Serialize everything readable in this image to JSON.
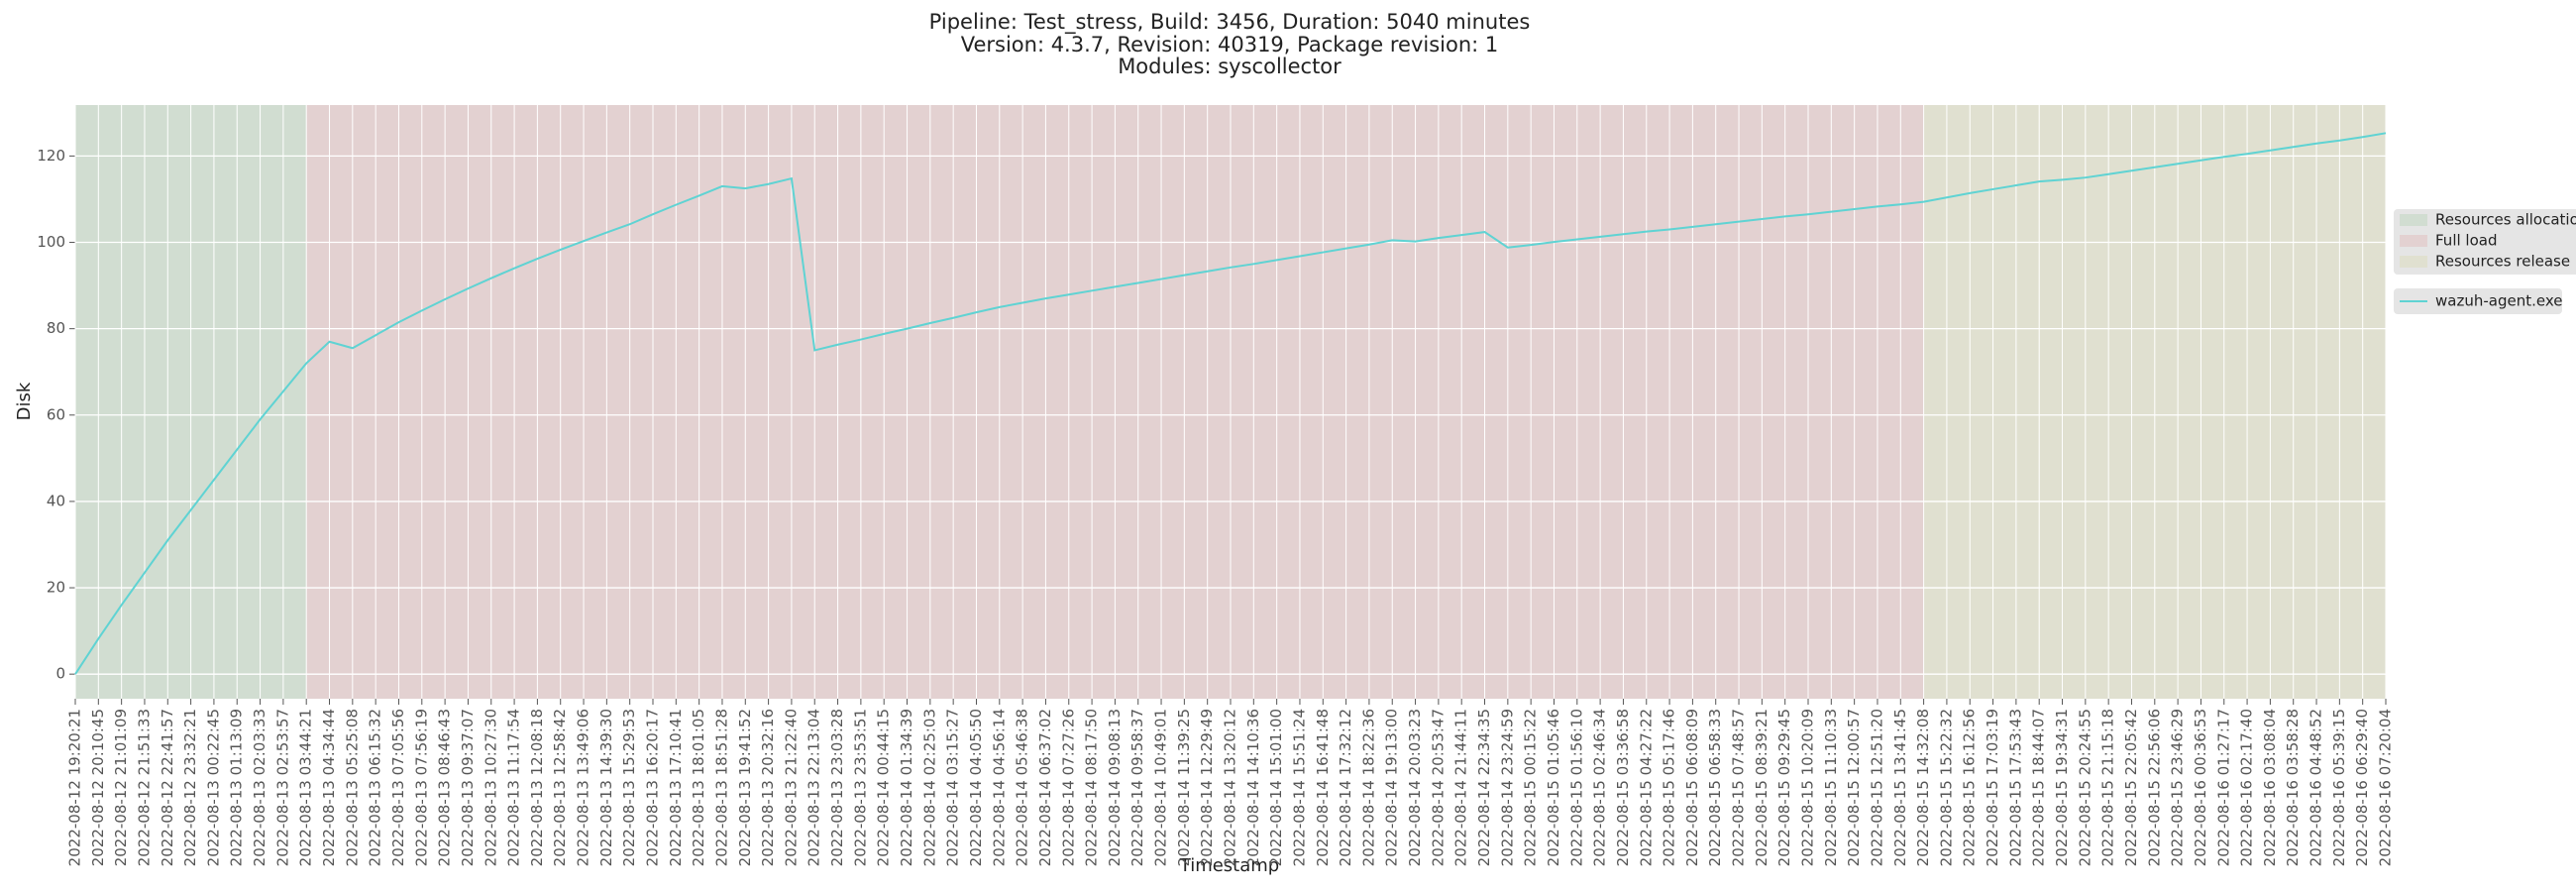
{
  "chart_data": {
    "type": "line",
    "title": [
      "Pipeline: Test_stress, Build: 3456, Duration: 5040 minutes",
      "Version: 4.3.7, Revision: 40319, Package revision: 1",
      "Modules: syscollector"
    ],
    "xlabel": "Timestamp",
    "ylabel": "Disk",
    "categories": [
      "2022-08-12 19:20:21",
      "2022-08-12 20:10:45",
      "2022-08-12 21:01:09",
      "2022-08-12 21:51:33",
      "2022-08-12 22:41:57",
      "2022-08-12 23:32:21",
      "2022-08-13 00:22:45",
      "2022-08-13 01:13:09",
      "2022-08-13 02:03:33",
      "2022-08-13 02:53:57",
      "2022-08-13 03:44:21",
      "2022-08-13 04:34:44",
      "2022-08-13 05:25:08",
      "2022-08-13 06:15:32",
      "2022-08-13 07:05:56",
      "2022-08-13 07:56:19",
      "2022-08-13 08:46:43",
      "2022-08-13 09:37:07",
      "2022-08-13 10:27:30",
      "2022-08-13 11:17:54",
      "2022-08-13 12:08:18",
      "2022-08-13 12:58:42",
      "2022-08-13 13:49:06",
      "2022-08-13 14:39:30",
      "2022-08-13 15:29:53",
      "2022-08-13 16:20:17",
      "2022-08-13 17:10:41",
      "2022-08-13 18:01:05",
      "2022-08-13 18:51:28",
      "2022-08-13 19:41:52",
      "2022-08-13 20:32:16",
      "2022-08-13 21:22:40",
      "2022-08-13 22:13:04",
      "2022-08-13 23:03:28",
      "2022-08-13 23:53:51",
      "2022-08-14 00:44:15",
      "2022-08-14 01:34:39",
      "2022-08-14 02:25:03",
      "2022-08-14 03:15:27",
      "2022-08-14 04:05:50",
      "2022-08-14 04:56:14",
      "2022-08-14 05:46:38",
      "2022-08-14 06:37:02",
      "2022-08-14 07:27:26",
      "2022-08-14 08:17:50",
      "2022-08-14 09:08:13",
      "2022-08-14 09:58:37",
      "2022-08-14 10:49:01",
      "2022-08-14 11:39:25",
      "2022-08-14 12:29:49",
      "2022-08-14 13:20:12",
      "2022-08-14 14:10:36",
      "2022-08-14 15:01:00",
      "2022-08-14 15:51:24",
      "2022-08-14 16:41:48",
      "2022-08-14 17:32:12",
      "2022-08-14 18:22:36",
      "2022-08-14 19:13:00",
      "2022-08-14 20:03:23",
      "2022-08-14 20:53:47",
      "2022-08-14 21:44:11",
      "2022-08-14 22:34:35",
      "2022-08-14 23:24:59",
      "2022-08-15 00:15:22",
      "2022-08-15 01:05:46",
      "2022-08-15 01:56:10",
      "2022-08-15 02:46:34",
      "2022-08-15 03:36:58",
      "2022-08-15 04:27:22",
      "2022-08-15 05:17:46",
      "2022-08-15 06:08:09",
      "2022-08-15 06:58:33",
      "2022-08-15 07:48:57",
      "2022-08-15 08:39:21",
      "2022-08-15 09:29:45",
      "2022-08-15 10:20:09",
      "2022-08-15 11:10:33",
      "2022-08-15 12:00:57",
      "2022-08-15 12:51:20",
      "2022-08-15 13:41:45",
      "2022-08-15 14:32:08",
      "2022-08-15 15:22:32",
      "2022-08-15 16:12:56",
      "2022-08-15 17:03:19",
      "2022-08-15 17:53:43",
      "2022-08-15 18:44:07",
      "2022-08-15 19:34:31",
      "2022-08-15 20:24:55",
      "2022-08-15 21:15:18",
      "2022-08-15 22:05:42",
      "2022-08-15 22:56:06",
      "2022-08-15 23:46:29",
      "2022-08-16 00:36:53",
      "2022-08-16 01:27:17",
      "2022-08-16 02:17:40",
      "2022-08-16 03:08:04",
      "2022-08-16 03:58:28",
      "2022-08-16 04:48:52",
      "2022-08-16 05:39:15",
      "2022-08-16 06:29:40",
      "2022-08-16 07:20:04"
    ],
    "series": [
      {
        "name": "wazuh-agent.exe",
        "color": "#5fd3d3",
        "values": [
          0,
          8.2,
          16,
          23.5,
          31,
          38,
          45,
          52,
          59,
          65.5,
          72,
          77,
          75.5,
          78.5,
          81.5,
          84.2,
          86.8,
          89.3,
          91.7,
          94,
          96.2,
          98.3,
          100.3,
          102.3,
          104.2,
          106.5,
          108.7,
          110.8,
          113,
          112.5,
          113.5,
          114.8,
          75,
          76.3,
          77.5,
          78.8,
          80,
          81.3,
          82.5,
          83.8,
          85,
          86,
          87,
          87.9,
          88.8,
          89.7,
          90.6,
          91.5,
          92.4,
          93.3,
          94.2,
          95,
          95.9,
          96.8,
          97.7,
          98.6,
          99.5,
          100.5,
          100.2,
          101,
          101.7,
          102.4,
          98.8,
          99.4,
          100.1,
          100.7,
          101.3,
          101.9,
          102.5,
          103,
          103.6,
          104.2,
          104.8,
          105.4,
          106,
          106.5,
          107.1,
          107.7,
          108.3,
          108.8,
          109.4,
          110.4,
          111.4,
          112.3,
          113.2,
          114.1,
          114.5,
          115,
          115.8,
          116.6,
          117.4,
          118.2,
          119,
          119.8,
          120.5,
          121.3,
          122.1,
          122.9,
          123.6,
          124.4,
          125.3
        ]
      }
    ],
    "spans": [
      {
        "name": "Resources allocation",
        "color": "#2ca02c",
        "start": "2022-08-12 19:20:21",
        "end": "2022-08-13 03:44:21"
      },
      {
        "name": "Full load",
        "color": "#d62728",
        "start": "2022-08-13 03:44:21",
        "end": "2022-08-15 14:32:08"
      },
      {
        "name": "Resources release",
        "color": "#bcbd22",
        "start": "2022-08-15 14:32:08",
        "end": "2022-08-16 07:20:04"
      }
    ],
    "span_alpha": 0.1,
    "ylim": [
      -5.7,
      131.8
    ],
    "yticks": [
      0,
      20,
      40,
      60,
      80,
      100,
      120
    ],
    "grid": true
  }
}
